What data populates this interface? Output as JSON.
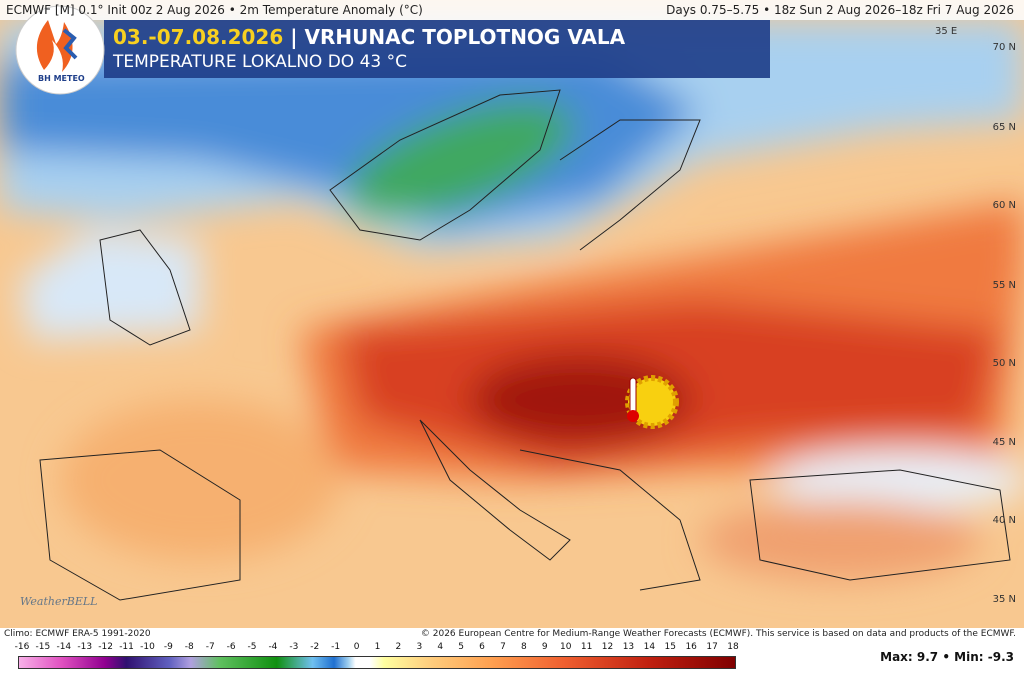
{
  "header": {
    "model_line": "ECMWF [M] 0.1° Init 00z 2 Aug 2026 • 2m Temperature Anomaly (°C)",
    "period_line": "Days 0.75–5.75 • 18z Sun 2 Aug 2026–18z Fri 7 Aug 2026"
  },
  "banner": {
    "date": "03.-07.08.2026",
    "title": "| VRHUNAC TOPLOTNOG VALA",
    "subtitle": "TEMPERATURE LOKALNO DO 43 °C"
  },
  "logo": {
    "text": "BH METEO"
  },
  "map": {
    "lon_label": "35 E",
    "lat_labels": [
      "70 N",
      "65 N",
      "60 N",
      "55 N",
      "50 N",
      "45 N",
      "40 N",
      "35 N"
    ],
    "watermark": "WeatherBELL"
  },
  "footer": {
    "climo": "Climo: ECMWF ERA-5 1991-2020",
    "copyright": "© 2026 European Centre for Medium-Range Weather Forecasts (ECMWF). This service is based on data and products of the ECMWF.",
    "maxmin": "Max: 9.7 • Min: -9.3"
  },
  "colorbar": {
    "labels": [
      -16,
      -15,
      -14,
      -13,
      -12,
      -11,
      -10,
      -9,
      -8,
      -7,
      -6,
      -5,
      -4,
      -3,
      -2,
      -1,
      0,
      1,
      2,
      3,
      4,
      5,
      6,
      7,
      8,
      9,
      10,
      11,
      12,
      13,
      14,
      15,
      16,
      17,
      18
    ]
  }
}
